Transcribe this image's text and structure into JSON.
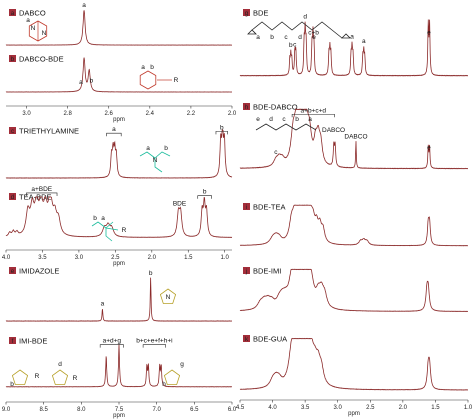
{
  "chart_data": [
    {
      "type": "line",
      "id": "A",
      "badge": "a",
      "title": "DABCO",
      "xlim": [
        3.1,
        2.0
      ],
      "peaks": [
        {
          "x": 2.72,
          "h": 1.0,
          "w": 0.006,
          "split": 0,
          "n": 1
        }
      ],
      "labels": [
        {
          "x": 2.72,
          "t": "a"
        }
      ],
      "baseline": 0.93,
      "top": 0.1,
      "struct": "dabco"
    },
    {
      "type": "line",
      "id": "B",
      "badge": "b",
      "title": "DABCO-BDE",
      "xlim": [
        3.1,
        2.0
      ],
      "peaks": [
        {
          "x": 2.72,
          "h": 0.95,
          "w": 0.006,
          "split": 0,
          "n": 1
        },
        {
          "x": 2.695,
          "h": 0.6,
          "w": 0.006,
          "split": 0,
          "n": 1
        }
      ],
      "labels": [
        {
          "x": 2.735,
          "t": "a"
        },
        {
          "x": 2.685,
          "t": "b"
        }
      ],
      "baseline": 0.8,
      "top": 0.1,
      "struct": "dabco-bde"
    },
    {
      "type": "line",
      "id": "C",
      "badge": "c",
      "title": "TRIETHYLAMINE",
      "xlim": [
        4.0,
        0.9
      ],
      "peaks": [
        {
          "x": 2.52,
          "h": 0.55,
          "w": 0.012,
          "split": 0.022,
          "n": 4
        },
        {
          "x": 1.03,
          "h": 0.9,
          "w": 0.012,
          "split": 0.025,
          "n": 3
        }
      ],
      "brackets": [
        {
          "x1": 2.62,
          "x2": 2.42,
          "t": "a"
        },
        {
          "x1": 1.12,
          "x2": 0.96,
          "t": "b"
        }
      ],
      "baseline": 0.9,
      "top": 0.1,
      "struct": "tea"
    },
    {
      "type": "line",
      "id": "D",
      "badge": "d",
      "title": "TEA-BDE",
      "xlim": [
        4.0,
        0.9
      ],
      "peaks": [
        {
          "x": 3.55,
          "h": 0.75,
          "w": 0.03,
          "split": 0.06,
          "n": 6
        },
        {
          "x": 3.33,
          "h": 0.45,
          "w": 0.03,
          "split": 0.05,
          "n": 3
        },
        {
          "x": 2.6,
          "h": 0.25,
          "w": 0.03,
          "split": 0.05,
          "n": 3
        },
        {
          "x": 1.62,
          "h": 0.55,
          "w": 0.02,
          "split": 0.03,
          "n": 2
        },
        {
          "x": 1.28,
          "h": 0.75,
          "w": 0.015,
          "split": 0.03,
          "n": 3
        },
        {
          "x": 3.9,
          "h": 0.12,
          "w": 0.02,
          "split": 0.05,
          "n": 3
        }
      ],
      "brackets": [
        {
          "x1": 3.72,
          "x2": 3.3,
          "t": "a+BDE"
        },
        {
          "x1": 1.37,
          "x2": 1.18,
          "t": "b"
        }
      ],
      "labels": [
        {
          "x": 1.62,
          "t": "BDE"
        }
      ],
      "baseline": 0.82,
      "top": 0.12,
      "struct": "tea-bde",
      "ticks": [
        4.0,
        3.5,
        3.0,
        2.5,
        2.0,
        1.5,
        1.0
      ],
      "axislabel": "ppm"
    },
    {
      "type": "line",
      "id": "E",
      "badge": "e",
      "title": "IMIDAZOLE",
      "xlim": [
        9.0,
        6.0
      ],
      "peaks": [
        {
          "x": 7.72,
          "h": 0.25,
          "w": 0.006,
          "split": 0,
          "n": 1
        },
        {
          "x": 7.08,
          "h": 0.85,
          "w": 0.006,
          "split": 0,
          "n": 1
        }
      ],
      "labels": [
        {
          "x": 7.72,
          "t": "a"
        },
        {
          "x": 7.08,
          "t": "b"
        }
      ],
      "baseline": 0.92,
      "top": 0.1,
      "struct": "imi"
    },
    {
      "type": "line",
      "id": "F",
      "badge": "f",
      "title": "IMI-BDE",
      "xlim": [
        9.0,
        6.0
      ],
      "peaks": [
        {
          "x": 7.67,
          "h": 0.7,
          "w": 0.008,
          "split": 0,
          "n": 1
        },
        {
          "x": 7.5,
          "h": 0.95,
          "w": 0.008,
          "split": 0,
          "n": 1
        },
        {
          "x": 7.12,
          "h": 0.45,
          "w": 0.008,
          "split": 0.02,
          "n": 2
        },
        {
          "x": 6.95,
          "h": 0.45,
          "w": 0.008,
          "split": 0.02,
          "n": 2
        }
      ],
      "brackets": [
        {
          "x1": 7.75,
          "x2": 7.44,
          "t": "a+d+g"
        },
        {
          "x1": 7.18,
          "x2": 6.88,
          "t": "b+c+e+f+h+i"
        }
      ],
      "baseline": 0.8,
      "top": 0.12,
      "struct": "imi-bde",
      "ticks": [
        9.0,
        8.5,
        8.0,
        7.5,
        7.0,
        6.5,
        6.0
      ],
      "axislabel": "ppm"
    },
    {
      "type": "line",
      "id": "G",
      "badge": "g",
      "title": "BDE",
      "xlim": [
        4.5,
        1.0
      ],
      "peaks": [
        {
          "x": 3.72,
          "h": 0.28,
          "w": 0.008,
          "split": 0.015,
          "n": 3
        },
        {
          "x": 3.65,
          "h": 0.35,
          "w": 0.008,
          "split": 0.015,
          "n": 2
        },
        {
          "x": 3.5,
          "h": 0.6,
          "w": 0.008,
          "split": 0.015,
          "n": 3
        },
        {
          "x": 3.38,
          "h": 0.55,
          "w": 0.008,
          "split": 0.015,
          "n": 3
        },
        {
          "x": 3.12,
          "h": 0.38,
          "w": 0.008,
          "split": 0.015,
          "n": 3
        },
        {
          "x": 2.78,
          "h": 0.38,
          "w": 0.008,
          "split": 0.015,
          "n": 3
        },
        {
          "x": 2.6,
          "h": 0.33,
          "w": 0.008,
          "split": 0.015,
          "n": 3
        },
        {
          "x": 1.6,
          "h": 0.75,
          "w": 0.008,
          "split": 0.02,
          "n": 2
        }
      ],
      "labels": [
        {
          "x": 3.72,
          "t": "b"
        },
        {
          "x": 3.66,
          "t": "c"
        },
        {
          "x": 3.5,
          "t": "d"
        },
        {
          "x": 3.37,
          "t": "c+b"
        },
        {
          "x": 2.78,
          "t": "a"
        },
        {
          "x": 2.6,
          "t": "a"
        },
        {
          "x": 1.6,
          "t": "e"
        }
      ],
      "baseline": 0.85,
      "top": 0.05,
      "struct": "bde"
    },
    {
      "type": "line",
      "id": "H",
      "badge": "h",
      "title": "BDE-DABCO",
      "xlim": [
        4.5,
        1.0
      ],
      "peaks": [
        {
          "x": 3.56,
          "h": 0.6,
          "w": 0.04,
          "split": 0.05,
          "n": 6
        },
        {
          "x": 3.3,
          "h": 0.4,
          "w": 0.03,
          "split": 0.04,
          "n": 3
        },
        {
          "x": 3.05,
          "h": 0.35,
          "w": 0.01,
          "split": 0.02,
          "n": 2
        },
        {
          "x": 3.9,
          "h": 0.12,
          "w": 0.04,
          "split": 0.05,
          "n": 3
        },
        {
          "x": 2.72,
          "h": 0.45,
          "w": 0.006,
          "split": 0,
          "n": 1
        },
        {
          "x": 1.6,
          "h": 0.35,
          "w": 0.008,
          "split": 0.02,
          "n": 2
        }
      ],
      "brackets": [
        {
          "x1": 3.7,
          "x2": 3.05,
          "t": "a+b+c+d"
        }
      ],
      "labels": [
        {
          "x": 3.95,
          "t": "c"
        },
        {
          "x": 2.72,
          "t": "DABCO"
        },
        {
          "x": 1.6,
          "t": "e"
        }
      ],
      "baseline": 0.88,
      "top": 0.12,
      "struct": "bde-dabco"
    },
    {
      "type": "line",
      "id": "I",
      "badge": "i",
      "title": "BDE-TEA",
      "xlim": [
        4.5,
        1.0
      ],
      "peaks": [
        {
          "x": 3.56,
          "h": 0.6,
          "w": 0.04,
          "split": 0.05,
          "n": 7
        },
        {
          "x": 3.3,
          "h": 0.4,
          "w": 0.03,
          "split": 0.05,
          "n": 4
        },
        {
          "x": 3.95,
          "h": 0.15,
          "w": 0.05,
          "split": 0.05,
          "n": 3
        },
        {
          "x": 2.6,
          "h": 0.12,
          "w": 0.03,
          "split": 0.05,
          "n": 3
        },
        {
          "x": 1.6,
          "h": 0.5,
          "w": 0.015,
          "split": 0.02,
          "n": 2
        }
      ],
      "baseline": 0.88,
      "top": 0.1,
      "struct": ""
    },
    {
      "type": "line",
      "id": "J",
      "badge": "j",
      "title": "BDE-IMI",
      "xlim": [
        4.5,
        1.0
      ],
      "peaks": [
        {
          "x": 3.56,
          "h": 0.7,
          "w": 0.05,
          "split": 0.06,
          "n": 6
        },
        {
          "x": 3.25,
          "h": 0.35,
          "w": 0.04,
          "split": 0.05,
          "n": 3
        },
        {
          "x": 4.1,
          "h": 0.18,
          "w": 0.05,
          "split": 0.06,
          "n": 4
        },
        {
          "x": 3.85,
          "h": 0.2,
          "w": 0.05,
          "split": 0.05,
          "n": 3
        },
        {
          "x": 1.62,
          "h": 0.45,
          "w": 0.02,
          "split": 0.02,
          "n": 2
        }
      ],
      "baseline": 0.88,
      "top": 0.1,
      "struct": ""
    },
    {
      "type": "line",
      "id": "K",
      "badge": "k",
      "title": "BDE-GUA",
      "xlim": [
        4.5,
        1.0
      ],
      "peaks": [
        {
          "x": 3.56,
          "h": 0.7,
          "w": 0.05,
          "split": 0.06,
          "n": 6
        },
        {
          "x": 3.3,
          "h": 0.35,
          "w": 0.04,
          "split": 0.05,
          "n": 3
        },
        {
          "x": 3.95,
          "h": 0.15,
          "w": 0.05,
          "split": 0.05,
          "n": 3
        },
        {
          "x": 1.6,
          "h": 0.4,
          "w": 0.02,
          "split": 0.02,
          "n": 2
        }
      ],
      "baseline": 0.88,
      "top": 0.1,
      "struct": "",
      "ticks": [
        4.5,
        4.0,
        3.5,
        3.0,
        2.5,
        2.0,
        1.5,
        1.0
      ],
      "axislabel": "ppm"
    }
  ],
  "axis_top_ticks": {
    "ticks": [
      3.0,
      2.8,
      2.6,
      2.4,
      2.2,
      2.0
    ],
    "label": "ppm"
  },
  "colors": {
    "trace": "#8b2a2a",
    "badge": "#a32e3a",
    "struct_dabco": "#c0392b",
    "struct_tea": "#1abc9c",
    "struct_imi": "#b7a12a",
    "struct_bde": "#222222"
  }
}
